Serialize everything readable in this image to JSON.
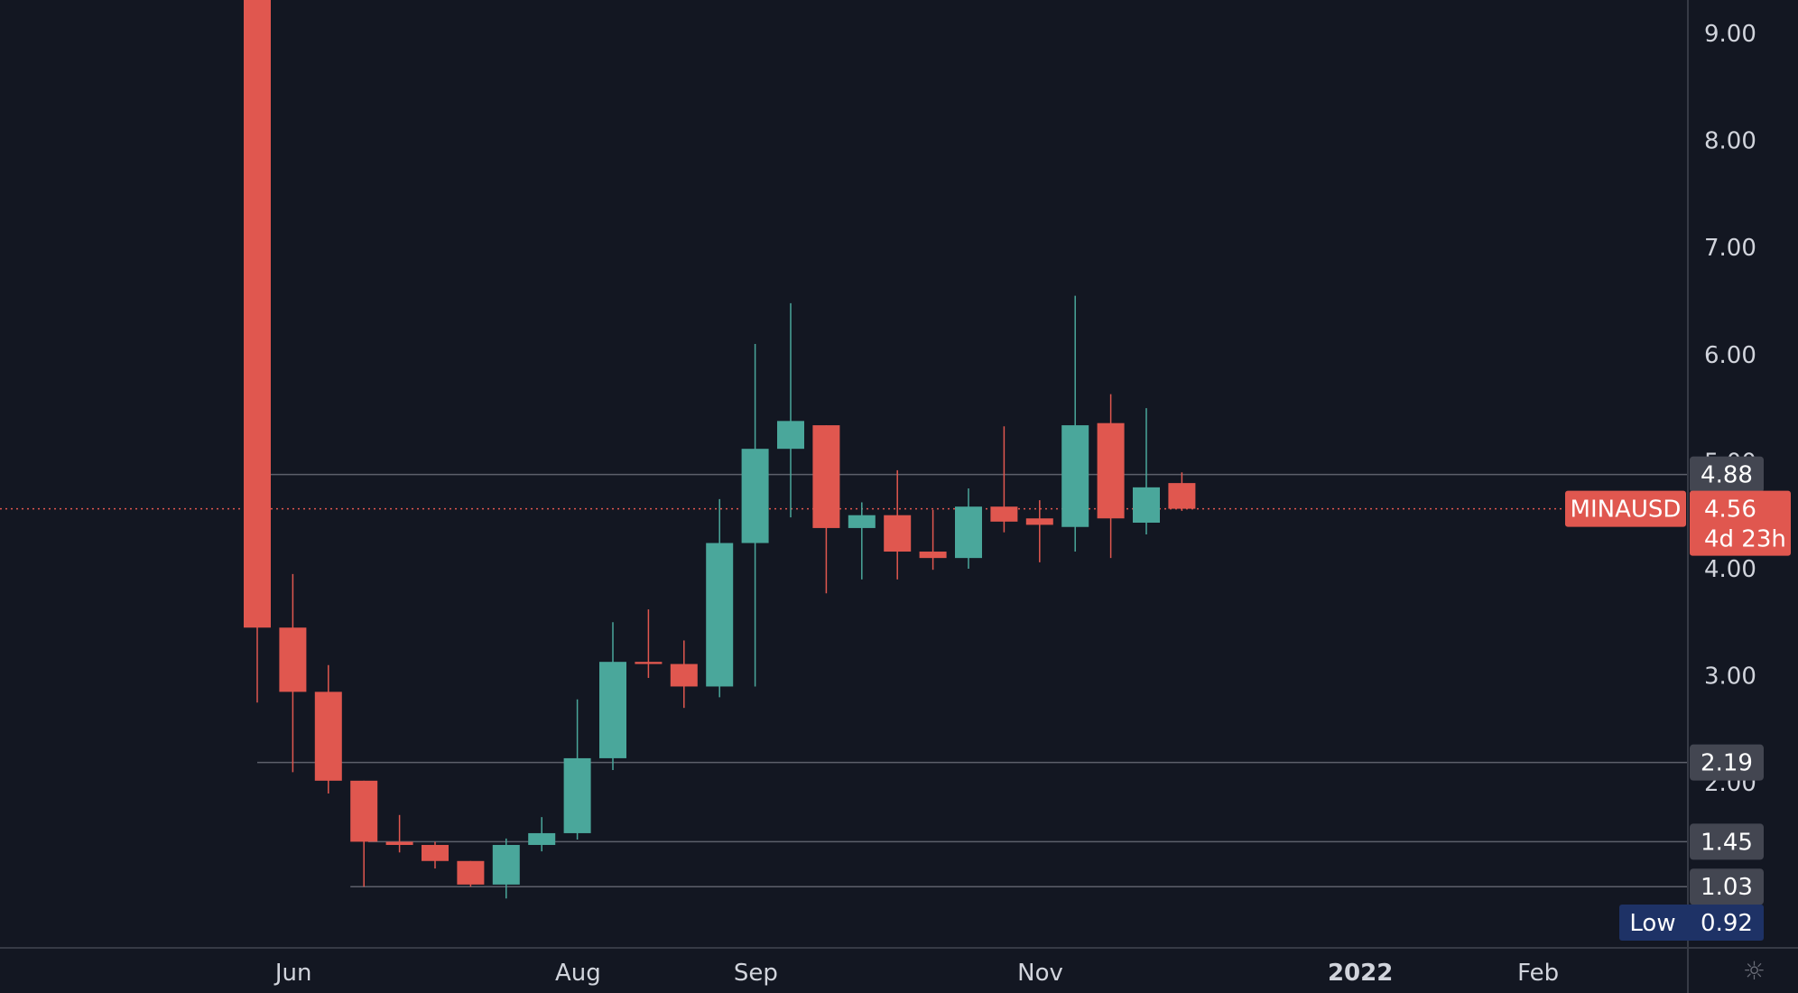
{
  "chart_data": {
    "type": "candlestick",
    "symbol": "MINAUSD",
    "ylim": [
      0.55,
      9.3
    ],
    "y_ticks": [
      "9.00",
      "8.00",
      "7.00",
      "6.00",
      "5.00",
      "4.00",
      "3.00",
      "2.00"
    ],
    "y_tick_values": [
      9,
      8,
      7,
      6,
      5,
      4,
      3,
      2
    ],
    "x_labels": [
      {
        "text": "Jun",
        "bar": 1.4,
        "bold": false
      },
      {
        "text": "Aug",
        "bar": 9.4,
        "bold": false
      },
      {
        "text": "Sep",
        "bar": 14.4,
        "bold": false
      },
      {
        "text": "Nov",
        "bar": 22.4,
        "bold": false
      },
      {
        "text": "2022",
        "bar": 31.4,
        "bold": true
      },
      {
        "text": "Feb",
        "bar": 36.4,
        "bold": false
      }
    ],
    "candles": [
      {
        "o": 9.4,
        "h": 9.4,
        "l": 2.75,
        "c": 3.45
      },
      {
        "o": 3.45,
        "h": 3.95,
        "l": 2.1,
        "c": 2.85
      },
      {
        "o": 2.85,
        "h": 3.1,
        "l": 1.9,
        "c": 2.02
      },
      {
        "o": 2.02,
        "h": 2.02,
        "l": 1.03,
        "c": 1.45
      },
      {
        "o": 1.45,
        "h": 1.7,
        "l": 1.35,
        "c": 1.42
      },
      {
        "o": 1.42,
        "h": 1.45,
        "l": 1.2,
        "c": 1.27
      },
      {
        "o": 1.27,
        "h": 1.27,
        "l": 1.03,
        "c": 1.05
      },
      {
        "o": 1.05,
        "h": 1.48,
        "l": 0.92,
        "c": 1.42
      },
      {
        "o": 1.42,
        "h": 1.68,
        "l": 1.36,
        "c": 1.53
      },
      {
        "o": 1.53,
        "h": 2.78,
        "l": 1.47,
        "c": 2.23
      },
      {
        "o": 2.23,
        "h": 3.5,
        "l": 2.12,
        "c": 3.13
      },
      {
        "o": 3.13,
        "h": 3.62,
        "l": 2.98,
        "c": 3.11
      },
      {
        "o": 3.11,
        "h": 3.33,
        "l": 2.7,
        "c": 2.9
      },
      {
        "o": 2.9,
        "h": 4.65,
        "l": 2.8,
        "c": 4.24
      },
      {
        "o": 4.24,
        "h": 6.1,
        "l": 2.9,
        "c": 5.12
      },
      {
        "o": 5.12,
        "h": 6.48,
        "l": 4.48,
        "c": 5.38
      },
      {
        "o": 5.34,
        "h": 5.34,
        "l": 3.77,
        "c": 4.38
      },
      {
        "o": 4.38,
        "h": 4.62,
        "l": 3.9,
        "c": 4.5
      },
      {
        "o": 4.5,
        "h": 4.92,
        "l": 3.9,
        "c": 4.16
      },
      {
        "o": 4.16,
        "h": 4.55,
        "l": 3.99,
        "c": 4.1
      },
      {
        "o": 4.1,
        "h": 4.75,
        "l": 4.0,
        "c": 4.58
      },
      {
        "o": 4.58,
        "h": 5.33,
        "l": 4.34,
        "c": 4.44
      },
      {
        "o": 4.47,
        "h": 4.64,
        "l": 4.06,
        "c": 4.41
      },
      {
        "o": 4.39,
        "h": 6.55,
        "l": 4.16,
        "c": 5.34
      },
      {
        "o": 5.36,
        "h": 5.63,
        "l": 4.1,
        "c": 4.47
      },
      {
        "o": 4.43,
        "h": 5.5,
        "l": 4.32,
        "c": 4.76
      },
      {
        "o": 4.8,
        "h": 4.9,
        "l": 4.54,
        "c": 4.56
      }
    ],
    "horizontal_levels": [
      {
        "value": 4.88,
        "label": "4.88",
        "start_bar": 0
      },
      {
        "value": 2.19,
        "label": "2.19",
        "start_bar": 0
      },
      {
        "value": 1.45,
        "label": "1.45",
        "start_bar": 3.5
      },
      {
        "value": 1.03,
        "label": "1.03",
        "start_bar": 3
      }
    ],
    "last_price": {
      "value": 4.56,
      "label": "4.56",
      "countdown": "4d 23h"
    },
    "low": {
      "label": "Low",
      "value": "0.92"
    },
    "colors": {
      "background": "#131722",
      "up": "#26a69a",
      "up_display": "#4aa79b",
      "down": "#e0574f",
      "level_line": "#5d606b",
      "level_badge": "#434651",
      "price_line": "#e0574f",
      "low_badge": "#1e3266",
      "axis_border": "#363a45",
      "text": "#d1d4dc"
    },
    "grid": false
  },
  "icons": {
    "settings": "settings-sun-icon"
  }
}
